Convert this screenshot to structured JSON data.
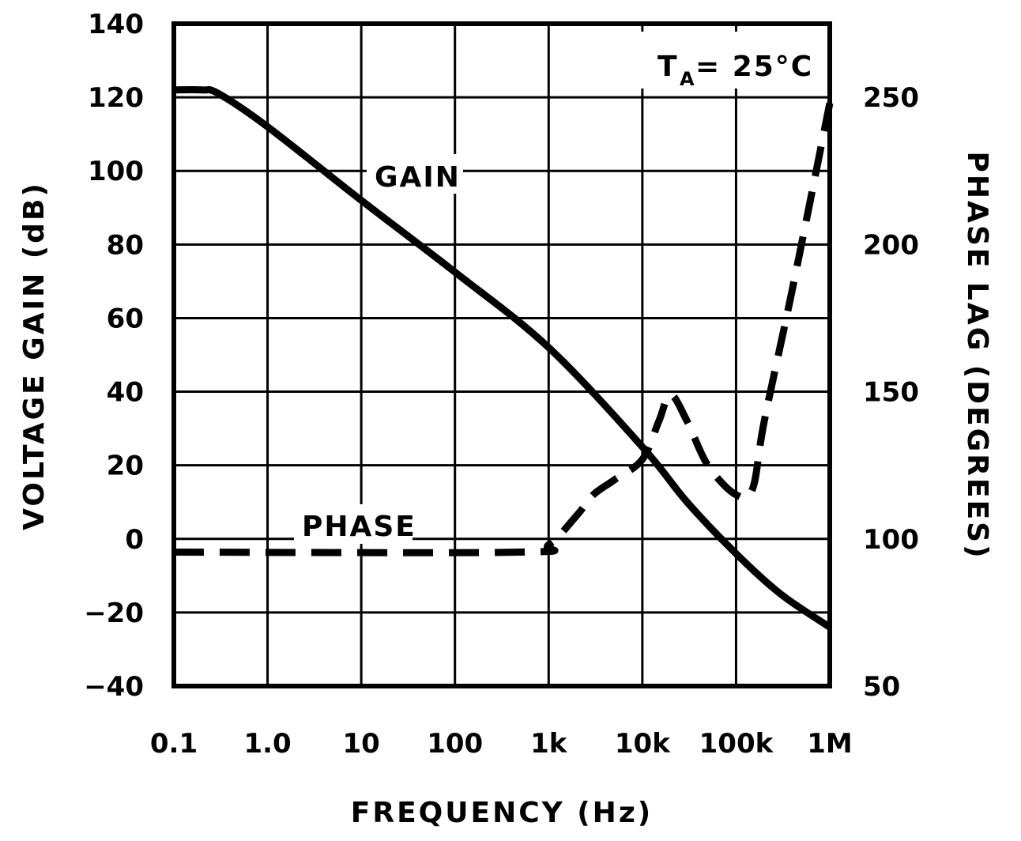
{
  "chart_data": {
    "type": "line",
    "xlabel": "FREQUENCY (Hz)",
    "ylabel": "VOLTAGE GAIN (dB)",
    "y2label": "PHASE LAG (DEGREES)",
    "x_scale": "log",
    "xlim": [
      0.1,
      1000000
    ],
    "ylim": [
      -40,
      140
    ],
    "y2lim": [
      50,
      275
    ],
    "grid": true,
    "x_ticks": [
      0.1,
      1,
      10,
      100,
      1000,
      10000,
      100000,
      1000000
    ],
    "x_tick_labels": [
      "0.1",
      "1.0",
      "10",
      "100",
      "1k",
      "10k",
      "100k",
      "1M"
    ],
    "y_ticks": [
      -40,
      -20,
      0,
      20,
      40,
      60,
      80,
      100,
      120,
      140
    ],
    "y_tick_labels": [
      "−40",
      "−20",
      "0",
      "20",
      "40",
      "60",
      "80",
      "100",
      "120",
      "140"
    ],
    "y2_ticks": [
      50,
      100,
      150,
      200,
      250
    ],
    "y2_tick_labels": [
      "50",
      "100",
      "150",
      "200",
      "250"
    ],
    "annotation": {
      "main": "T",
      "sub": "A",
      "rest": " = 25°C"
    },
    "series": [
      {
        "name": "GAIN",
        "axis": "left",
        "style": "solid",
        "x": [
          0.1,
          0.2,
          0.3,
          1,
          10,
          100,
          1000,
          10000,
          30000,
          100000,
          300000,
          1000000
        ],
        "y": [
          122,
          122,
          121,
          112,
          92,
          72.5,
          52,
          25,
          10,
          -4,
          -15,
          -24
        ]
      },
      {
        "name": "PHASE",
        "axis": "right",
        "style": "dashed",
        "x": [
          0.1,
          500,
          1000,
          2000,
          3000,
          5000,
          10000,
          15000,
          20000,
          30000,
          50000,
          100000,
          150000,
          200000,
          400000,
          1000000
        ],
        "y": [
          95.5,
          95.5,
          98,
          108,
          115,
          120,
          127,
          140,
          149,
          140,
          125,
          115,
          117,
          140,
          185,
          248
        ]
      }
    ]
  }
}
